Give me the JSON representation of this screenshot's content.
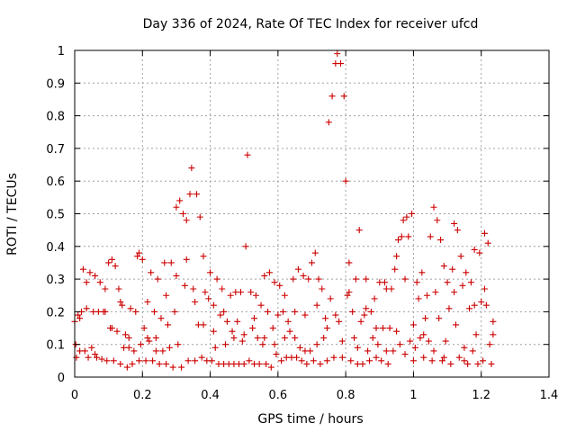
{
  "colors": {
    "points": "#cc0000"
  },
  "chart_data": {
    "type": "scatter",
    "title": "Day 336 of 2024, Rate Of TEC Index for receiver ufcd",
    "xlabel": "GPS time / hours",
    "ylabel": "ROTI / TECUs",
    "xlim": [
      0,
      1.4
    ],
    "ylim": [
      0,
      1
    ],
    "grid": true,
    "marker": "plus",
    "xticks": [
      0,
      0.2,
      0.4,
      0.6,
      0.8,
      1,
      1.2,
      1.4
    ],
    "xtick_labels": [
      "0",
      "0.2",
      "0.4",
      "0.6",
      "0.8",
      "1",
      "1.2",
      "1.4"
    ],
    "yticks": [
      0,
      0.1,
      0.2,
      0.3,
      0.4,
      0.5,
      0.6,
      0.7,
      0.8,
      0.9,
      1
    ],
    "ytick_labels": [
      "0",
      "0.1",
      "0.2",
      "0.3",
      "0.4",
      "0.5",
      "0.6",
      "0.7",
      "0.8",
      "0.9",
      "1"
    ],
    "series": [
      {
        "name": "ROTI",
        "points": [
          [
            0.0,
            0.17
          ],
          [
            0.003,
            0.1
          ],
          [
            0.005,
            0.06
          ],
          [
            0.01,
            0.19
          ],
          [
            0.015,
            0.08
          ],
          [
            0.02,
            0.2
          ],
          [
            0.025,
            0.33
          ],
          [
            0.03,
            0.08
          ],
          [
            0.035,
            0.21
          ],
          [
            0.04,
            0.06
          ],
          [
            0.045,
            0.32
          ],
          [
            0.05,
            0.09
          ],
          [
            0.055,
            0.2
          ],
          [
            0.06,
            0.31
          ],
          [
            0.065,
            0.06
          ],
          [
            0.07,
            0.2
          ],
          [
            0.075,
            0.29
          ],
          [
            0.08,
            0.055
          ],
          [
            0.085,
            0.2
          ],
          [
            0.09,
            0.27
          ],
          [
            0.095,
            0.05
          ],
          [
            0.1,
            0.35
          ],
          [
            0.105,
            0.15
          ],
          [
            0.11,
            0.36
          ],
          [
            0.115,
            0.05
          ],
          [
            0.12,
            0.34
          ],
          [
            0.125,
            0.14
          ],
          [
            0.13,
            0.27
          ],
          [
            0.135,
            0.04
          ],
          [
            0.14,
            0.22
          ],
          [
            0.145,
            0.09
          ],
          [
            0.15,
            0.13
          ],
          [
            0.155,
            0.03
          ],
          [
            0.16,
            0.12
          ],
          [
            0.165,
            0.21
          ],
          [
            0.17,
            0.04
          ],
          [
            0.175,
            0.08
          ],
          [
            0.18,
            0.2
          ],
          [
            0.185,
            0.37
          ],
          [
            0.19,
            0.05
          ],
          [
            0.195,
            0.1
          ],
          [
            0.2,
            0.36
          ],
          [
            0.205,
            0.15
          ],
          [
            0.21,
            0.05
          ],
          [
            0.215,
            0.23
          ],
          [
            0.22,
            0.11
          ],
          [
            0.225,
            0.32
          ],
          [
            0.23,
            0.05
          ],
          [
            0.235,
            0.2
          ],
          [
            0.24,
            0.12
          ],
          [
            0.245,
            0.3
          ],
          [
            0.25,
            0.04
          ],
          [
            0.255,
            0.18
          ],
          [
            0.26,
            0.08
          ],
          [
            0.265,
            0.35
          ],
          [
            0.27,
            0.04
          ],
          [
            0.275,
            0.16
          ],
          [
            0.28,
            0.09
          ],
          [
            0.285,
            0.35
          ],
          [
            0.29,
            0.03
          ],
          [
            0.295,
            0.2
          ],
          [
            0.3,
            0.52
          ],
          [
            0.305,
            0.1
          ],
          [
            0.31,
            0.54
          ],
          [
            0.315,
            0.03
          ],
          [
            0.32,
            0.5
          ],
          [
            0.325,
            0.28
          ],
          [
            0.33,
            0.48
          ],
          [
            0.335,
            0.05
          ],
          [
            0.34,
            0.56
          ],
          [
            0.345,
            0.64
          ],
          [
            0.35,
            0.27
          ],
          [
            0.355,
            0.05
          ],
          [
            0.36,
            0.56
          ],
          [
            0.365,
            0.16
          ],
          [
            0.37,
            0.49
          ],
          [
            0.375,
            0.06
          ],
          [
            0.38,
            0.37
          ],
          [
            0.385,
            0.26
          ],
          [
            0.39,
            0.05
          ],
          [
            0.395,
            0.24
          ],
          [
            0.4,
            0.32
          ],
          [
            0.405,
            0.05
          ],
          [
            0.41,
            0.22
          ],
          [
            0.415,
            0.09
          ],
          [
            0.42,
            0.3
          ],
          [
            0.425,
            0.04
          ],
          [
            0.43,
            0.19
          ],
          [
            0.435,
            0.27
          ],
          [
            0.44,
            0.04
          ],
          [
            0.445,
            0.1
          ],
          [
            0.45,
            0.17
          ],
          [
            0.455,
            0.04
          ],
          [
            0.46,
            0.25
          ],
          [
            0.465,
            0.14
          ],
          [
            0.47,
            0.04
          ],
          [
            0.475,
            0.26
          ],
          [
            0.48,
            0.17
          ],
          [
            0.485,
            0.04
          ],
          [
            0.49,
            0.26
          ],
          [
            0.495,
            0.11
          ],
          [
            0.5,
            0.04
          ],
          [
            0.505,
            0.4
          ],
          [
            0.51,
            0.68
          ],
          [
            0.515,
            0.05
          ],
          [
            0.52,
            0.26
          ],
          [
            0.525,
            0.15
          ],
          [
            0.53,
            0.04
          ],
          [
            0.535,
            0.25
          ],
          [
            0.54,
            0.12
          ],
          [
            0.545,
            0.04
          ],
          [
            0.55,
            0.22
          ],
          [
            0.555,
            0.1
          ],
          [
            0.56,
            0.31
          ],
          [
            0.565,
            0.04
          ],
          [
            0.57,
            0.2
          ],
          [
            0.575,
            0.32
          ],
          [
            0.58,
            0.03
          ],
          [
            0.585,
            0.15
          ],
          [
            0.59,
            0.29
          ],
          [
            0.595,
            0.07
          ],
          [
            0.6,
            0.19
          ],
          [
            0.605,
            0.28
          ],
          [
            0.61,
            0.05
          ],
          [
            0.615,
            0.2
          ],
          [
            0.62,
            0.25
          ],
          [
            0.625,
            0.06
          ],
          [
            0.63,
            0.17
          ],
          [
            0.635,
            0.14
          ],
          [
            0.64,
            0.06
          ],
          [
            0.645,
            0.3
          ],
          [
            0.65,
            0.12
          ],
          [
            0.655,
            0.06
          ],
          [
            0.66,
            0.33
          ],
          [
            0.665,
            0.09
          ],
          [
            0.67,
            0.05
          ],
          [
            0.675,
            0.31
          ],
          [
            0.68,
            0.19
          ],
          [
            0.685,
            0.04
          ],
          [
            0.69,
            0.3
          ],
          [
            0.695,
            0.08
          ],
          [
            0.7,
            0.35
          ],
          [
            0.705,
            0.05
          ],
          [
            0.71,
            0.38
          ],
          [
            0.715,
            0.1
          ],
          [
            0.72,
            0.3
          ],
          [
            0.725,
            0.04
          ],
          [
            0.73,
            0.27
          ],
          [
            0.735,
            0.12
          ],
          [
            0.74,
            0.18
          ],
          [
            0.745,
            0.05
          ],
          [
            0.75,
            0.78
          ],
          [
            0.755,
            0.24
          ],
          [
            0.76,
            0.86
          ],
          [
            0.765,
            0.06
          ],
          [
            0.77,
            0.96
          ],
          [
            0.775,
            0.99
          ],
          [
            0.78,
            0.17
          ],
          [
            0.785,
            0.96
          ],
          [
            0.79,
            0.06
          ],
          [
            0.795,
            0.86
          ],
          [
            0.8,
            0.6
          ],
          [
            0.805,
            0.25
          ],
          [
            0.81,
            0.35
          ],
          [
            0.815,
            0.05
          ],
          [
            0.82,
            0.2
          ],
          [
            0.825,
            0.12
          ],
          [
            0.83,
            0.3
          ],
          [
            0.835,
            0.04
          ],
          [
            0.84,
            0.45
          ],
          [
            0.845,
            0.17
          ],
          [
            0.85,
            0.04
          ],
          [
            0.855,
            0.19
          ],
          [
            0.86,
            0.3
          ],
          [
            0.865,
            0.08
          ],
          [
            0.87,
            0.05
          ],
          [
            0.875,
            0.2
          ],
          [
            0.88,
            0.12
          ],
          [
            0.885,
            0.24
          ],
          [
            0.89,
            0.06
          ],
          [
            0.895,
            0.1
          ],
          [
            0.9,
            0.29
          ],
          [
            0.905,
            0.05
          ],
          [
            0.91,
            0.15
          ],
          [
            0.915,
            0.29
          ],
          [
            0.92,
            0.08
          ],
          [
            0.925,
            0.04
          ],
          [
            0.93,
            0.15
          ],
          [
            0.935,
            0.27
          ],
          [
            0.94,
            0.08
          ],
          [
            0.945,
            0.33
          ],
          [
            0.95,
            0.37
          ],
          [
            0.955,
            0.42
          ],
          [
            0.96,
            0.1
          ],
          [
            0.965,
            0.43
          ],
          [
            0.97,
            0.48
          ],
          [
            0.975,
            0.07
          ],
          [
            0.98,
            0.49
          ],
          [
            0.985,
            0.43
          ],
          [
            0.99,
            0.11
          ],
          [
            0.995,
            0.5
          ],
          [
            1.0,
            0.05
          ],
          [
            1.005,
            0.09
          ],
          [
            1.01,
            0.29
          ],
          [
            1.015,
            0.24
          ],
          [
            1.02,
            0.12
          ],
          [
            1.025,
            0.32
          ],
          [
            1.03,
            0.06
          ],
          [
            1.035,
            0.18
          ],
          [
            1.04,
            0.25
          ],
          [
            1.045,
            0.11
          ],
          [
            1.05,
            0.43
          ],
          [
            1.055,
            0.05
          ],
          [
            1.06,
            0.52
          ],
          [
            1.065,
            0.26
          ],
          [
            1.07,
            0.48
          ],
          [
            1.075,
            0.18
          ],
          [
            1.08,
            0.42
          ],
          [
            1.085,
            0.05
          ],
          [
            1.09,
            0.34
          ],
          [
            1.095,
            0.11
          ],
          [
            1.1,
            0.29
          ],
          [
            1.105,
            0.21
          ],
          [
            1.11,
            0.04
          ],
          [
            1.115,
            0.33
          ],
          [
            1.12,
            0.47
          ],
          [
            1.125,
            0.16
          ],
          [
            1.13,
            0.45
          ],
          [
            1.135,
            0.06
          ],
          [
            1.14,
            0.37
          ],
          [
            1.145,
            0.28
          ],
          [
            1.15,
            0.09
          ],
          [
            1.155,
            0.32
          ],
          [
            1.16,
            0.04
          ],
          [
            1.165,
            0.21
          ],
          [
            1.17,
            0.29
          ],
          [
            1.175,
            0.08
          ],
          [
            1.18,
            0.39
          ],
          [
            1.185,
            0.13
          ],
          [
            1.19,
            0.04
          ],
          [
            1.195,
            0.38
          ],
          [
            1.2,
            0.23
          ],
          [
            1.205,
            0.05
          ],
          [
            1.21,
            0.44
          ],
          [
            1.215,
            0.22
          ],
          [
            1.22,
            0.41
          ],
          [
            1.225,
            0.1
          ],
          [
            1.23,
            0.04
          ],
          [
            1.235,
            0.13
          ],
          [
            0.015,
            0.18
          ],
          [
            0.035,
            0.29
          ],
          [
            0.06,
            0.07
          ],
          [
            0.09,
            0.2
          ],
          [
            0.11,
            0.15
          ],
          [
            0.135,
            0.23
          ],
          [
            0.16,
            0.09
          ],
          [
            0.19,
            0.38
          ],
          [
            0.215,
            0.12
          ],
          [
            0.24,
            0.08
          ],
          [
            0.27,
            0.25
          ],
          [
            0.3,
            0.31
          ],
          [
            0.33,
            0.36
          ],
          [
            0.355,
            0.23
          ],
          [
            0.38,
            0.16
          ],
          [
            0.41,
            0.14
          ],
          [
            0.44,
            0.2
          ],
          [
            0.47,
            0.12
          ],
          [
            0.5,
            0.13
          ],
          [
            0.53,
            0.18
          ],
          [
            0.56,
            0.12
          ],
          [
            0.59,
            0.1
          ],
          [
            0.62,
            0.12
          ],
          [
            0.65,
            0.2
          ],
          [
            0.68,
            0.08
          ],
          [
            0.715,
            0.22
          ],
          [
            0.745,
            0.15
          ],
          [
            0.77,
            0.19
          ],
          [
            0.79,
            0.11
          ],
          [
            0.81,
            0.26
          ],
          [
            0.835,
            0.09
          ],
          [
            0.86,
            0.21
          ],
          [
            0.89,
            0.15
          ],
          [
            0.92,
            0.27
          ],
          [
            0.95,
            0.14
          ],
          [
            0.975,
            0.3
          ],
          [
            1.0,
            0.16
          ],
          [
            1.03,
            0.13
          ],
          [
            1.06,
            0.08
          ],
          [
            1.09,
            0.06
          ],
          [
            1.12,
            0.26
          ],
          [
            1.15,
            0.05
          ],
          [
            1.18,
            0.22
          ],
          [
            1.21,
            0.27
          ],
          [
            1.235,
            0.17
          ]
        ]
      }
    ]
  }
}
